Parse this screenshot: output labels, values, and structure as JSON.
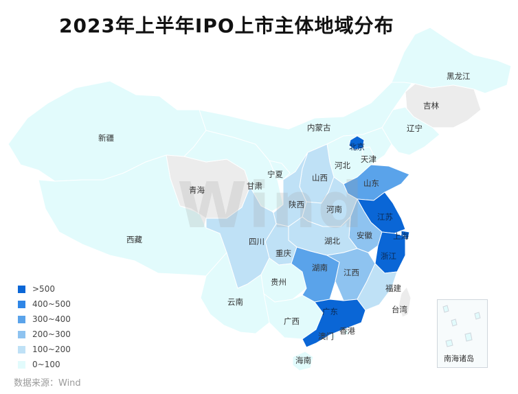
{
  "title": "2023年上半年IPO上市主体地域分布",
  "source": "数据来源：Wind",
  "watermark": "Wind",
  "inset_label": "南海诸岛",
  "colors": {
    "gt500": "#0a66d6",
    "400_500": "#2f86e6",
    "300_400": "#5aa3ea",
    "200_300": "#8ec3f0",
    "100_200": "#bfe1f6",
    "0_100": "#e2fbfc",
    "nodata": "#ececec",
    "border": "#ffffff"
  },
  "legend": [
    {
      "label": ">500",
      "color_key": "gt500"
    },
    {
      "label": "400~500",
      "color_key": "400_500"
    },
    {
      "label": "300~400",
      "color_key": "300_400"
    },
    {
      "label": "200~300",
      "color_key": "200_300"
    },
    {
      "label": "100~200",
      "color_key": "100_200"
    },
    {
      "label": "0~100",
      "color_key": "0_100"
    }
  ],
  "provinces": [
    {
      "name": "新疆",
      "bucket": "0_100"
    },
    {
      "name": "西藏",
      "bucket": "0_100"
    },
    {
      "name": "青海",
      "bucket": "nodata"
    },
    {
      "name": "甘肃",
      "bucket": "0_100"
    },
    {
      "name": "内蒙古",
      "bucket": "0_100"
    },
    {
      "name": "黑龙江",
      "bucket": "0_100"
    },
    {
      "name": "吉林",
      "bucket": "nodata"
    },
    {
      "name": "辽宁",
      "bucket": "0_100"
    },
    {
      "name": "北京",
      "bucket": "gt500"
    },
    {
      "name": "天津",
      "bucket": "0_100"
    },
    {
      "name": "河北",
      "bucket": "0_100"
    },
    {
      "name": "宁夏",
      "bucket": "0_100"
    },
    {
      "name": "山西",
      "bucket": "100_200"
    },
    {
      "name": "陕西",
      "bucket": "100_200"
    },
    {
      "name": "山东",
      "bucket": "300_400"
    },
    {
      "name": "河南",
      "bucket": "100_200"
    },
    {
      "name": "江苏",
      "bucket": "gt500"
    },
    {
      "name": "上海",
      "bucket": "gt500"
    },
    {
      "name": "安徽",
      "bucket": "200_300"
    },
    {
      "name": "浙江",
      "bucket": "gt500"
    },
    {
      "name": "四川",
      "bucket": "100_200"
    },
    {
      "name": "重庆",
      "bucket": "100_200"
    },
    {
      "name": "湖北",
      "bucket": "100_200"
    },
    {
      "name": "湖南",
      "bucket": "300_400"
    },
    {
      "name": "江西",
      "bucket": "200_300"
    },
    {
      "name": "福建",
      "bucket": "100_200"
    },
    {
      "name": "贵州",
      "bucket": "0_100"
    },
    {
      "name": "云南",
      "bucket": "0_100"
    },
    {
      "name": "广西",
      "bucket": "0_100"
    },
    {
      "name": "广东",
      "bucket": "gt500"
    },
    {
      "name": "台湾",
      "bucket": "nodata"
    },
    {
      "name": "香港",
      "bucket": "0_100"
    },
    {
      "name": "澳门",
      "bucket": "0_100"
    },
    {
      "name": "海南",
      "bucket": "0_100"
    }
  ]
}
